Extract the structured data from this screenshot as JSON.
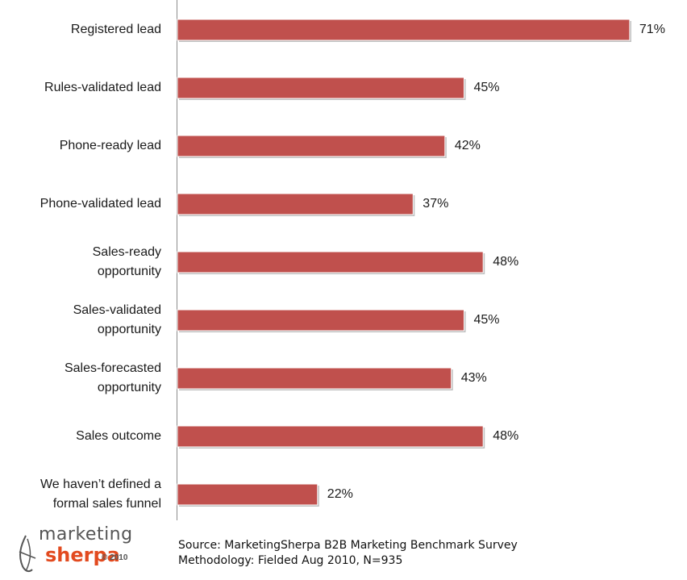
{
  "chart_data": {
    "type": "bar",
    "orientation": "horizontal",
    "categories": [
      "Registered lead",
      "Rules-validated lead",
      "Phone-ready lead",
      "Phone-validated lead",
      "Sales-ready opportunity",
      "Sales-validated opportunity",
      "Sales-forecasted opportunity",
      "Sales outcome",
      "We haven’t defined a formal sales funnel"
    ],
    "category_lines": [
      [
        "Registered lead"
      ],
      [
        "Rules-validated lead"
      ],
      [
        "Phone-ready lead"
      ],
      [
        "Phone-validated lead"
      ],
      [
        "Sales-ready",
        "opportunity"
      ],
      [
        "Sales-validated",
        "opportunity"
      ],
      [
        "Sales-forecasted",
        "opportunity"
      ],
      [
        "Sales outcome"
      ],
      [
        "We haven’t defined a",
        "formal sales funnel"
      ]
    ],
    "values": [
      71,
      45,
      42,
      37,
      48,
      45,
      43,
      48,
      22
    ],
    "value_labels": [
      "71%",
      "45%",
      "42%",
      "37%",
      "48%",
      "45%",
      "43%",
      "48%",
      "22%"
    ],
    "unit": "%",
    "xlim": [
      0,
      100
    ],
    "grid": false,
    "legend": "none",
    "bar_color": "#c0504d"
  },
  "source": {
    "line1": "Source: MarketingSherpa B2B Marketing Benchmark Survey",
    "line2": "Methodology: Fielded Aug 2010, N=935"
  },
  "logo": {
    "word1": "marketing",
    "word2": "sherpa",
    "copyright": "© 2010"
  }
}
